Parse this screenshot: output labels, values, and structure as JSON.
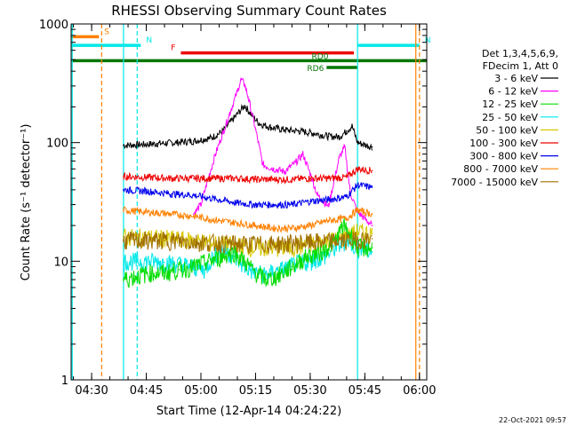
{
  "chart_data": {
    "type": "line",
    "title": "RHESSI Observing Summary Count Rates",
    "xlabel": "Start Time (12-Apr-14 04:24:22)",
    "ylabel": "Count Rate (s⁻¹ detector⁻¹)",
    "y_scale": "log",
    "ylim": [
      1,
      1000
    ],
    "xlim": [
      "04:24:22",
      "06:02:00"
    ],
    "x_ticks": [
      "04:30",
      "04:45",
      "05:00",
      "05:15",
      "05:30",
      "05:45",
      "06:00"
    ],
    "y_ticks": [
      "1",
      "10",
      "100",
      "1000"
    ],
    "footer_date": "22-Oct-2021 09:57",
    "legend": {
      "placement": "right",
      "header": [
        "Det 1,3,4,5,6,9,",
        "FDecim 1, Att 0"
      ],
      "entries": [
        {
          "label": "3 - 6 keV",
          "color": "#000000"
        },
        {
          "label": "6 - 12 keV",
          "color": "#ff00ff"
        },
        {
          "label": "12 - 25 keV",
          "color": "#00dd00"
        },
        {
          "label": "25 - 50 keV",
          "color": "#00e8e8"
        },
        {
          "label": "50 - 100 keV",
          "color": "#d8c800"
        },
        {
          "label": "100 - 300 keV",
          "color": "#ee0000"
        },
        {
          "label": "300 - 800 keV",
          "color": "#0000ee"
        },
        {
          "label": "800 - 7000 keV",
          "color": "#ff8000"
        },
        {
          "label": "7000 - 15000 keV",
          "color": "#a07000"
        }
      ]
    },
    "flags": [
      {
        "label": "S",
        "color": "#ff8000",
        "start": "04:24:22",
        "end": "04:32:00",
        "level": 780
      },
      {
        "label": "N",
        "color": "#00e8e8",
        "start": "04:24:22",
        "end": "04:43:30",
        "level": 660
      },
      {
        "label": "N",
        "color": "#00e8e8",
        "start": "05:43:00",
        "end": "06:00:00",
        "level": 660
      },
      {
        "label": "F",
        "color": "#ee0000",
        "start": "04:54:30",
        "end": "05:42:00",
        "level": 570
      },
      {
        "label": "RD0",
        "color": "#007700",
        "start": "04:24:22",
        "end": "06:02:00",
        "level": 490
      },
      {
        "label": "RD6",
        "color": "#007700",
        "start": "05:34:30",
        "end": "05:43:00",
        "level": 430
      }
    ],
    "vlines": [
      {
        "time": "04:24:40",
        "color": "#00e8e8",
        "style": "solid"
      },
      {
        "time": "04:32:45",
        "color": "#ff8000",
        "style": "dashed"
      },
      {
        "time": "04:42:30",
        "color": "#00e8e8",
        "style": "dashed"
      },
      {
        "time": "04:38:45",
        "color": "#00e8e8",
        "style": "solid"
      },
      {
        "time": "05:43:00",
        "color": "#00e8e8",
        "style": "solid"
      },
      {
        "time": "05:59:00",
        "color": "#ff8000",
        "style": "solid"
      },
      {
        "time": "06:00:00",
        "color": "#ff8000",
        "style": "dashed"
      }
    ],
    "series": [
      {
        "name": "3 - 6 keV",
        "color": "#000000",
        "x": [
          "04:38:45",
          "04:43:00",
          "04:48:00",
          "04:53:00",
          "04:58:00",
          "05:03:00",
          "05:06:00",
          "05:09:00",
          "05:12:00",
          "05:14:00",
          "05:16:00",
          "05:19:00",
          "05:23:00",
          "05:27:00",
          "05:31:00",
          "05:35:00",
          "05:38:00",
          "05:40:00",
          "05:41:30",
          "05:43:00",
          "05:47:00"
        ],
        "y": [
          95,
          96,
          98,
          100,
          103,
          110,
          125,
          160,
          205,
          170,
          145,
          135,
          128,
          125,
          120,
          113,
          112,
          125,
          138,
          100,
          92
        ]
      },
      {
        "name": "6 - 12 keV",
        "color": "#ff00ff",
        "x": [
          "04:58:00",
          "05:00:00",
          "05:02:00",
          "05:04:00",
          "05:06:00",
          "05:08:00",
          "05:10:00",
          "05:11:00",
          "05:12:00",
          "05:13:00",
          "05:15:00",
          "05:17:00",
          "05:20:00",
          "05:23:00",
          "05:26:00",
          "05:28:00",
          "05:30:00",
          "05:32:00",
          "05:35:00",
          "05:38:00",
          "05:39:30",
          "05:41:00",
          "05:43:00",
          "05:47:00"
        ],
        "y": [
          25,
          30,
          50,
          80,
          120,
          180,
          270,
          340,
          310,
          240,
          130,
          65,
          60,
          57,
          68,
          80,
          55,
          36,
          29,
          75,
          92,
          38,
          26,
          20
        ]
      },
      {
        "name": "100 - 300 keV",
        "color": "#ee0000",
        "x": [
          "04:38:45",
          "04:45:00",
          "04:52:00",
          "04:58:00",
          "05:05:00",
          "05:10:00",
          "05:15:00",
          "05:20:00",
          "05:25:00",
          "05:30:00",
          "05:35:00",
          "05:40:00",
          "05:43:00",
          "05:47:00"
        ],
        "y": [
          52,
          51,
          50,
          50,
          50,
          50,
          49,
          49,
          49,
          50,
          50,
          51,
          60,
          58
        ]
      },
      {
        "name": "300 - 800 keV",
        "color": "#0000ee",
        "x": [
          "04:38:45",
          "04:45:00",
          "04:52:00",
          "04:58:00",
          "05:05:00",
          "05:10:00",
          "05:15:00",
          "05:20:00",
          "05:25:00",
          "05:30:00",
          "05:35:00",
          "05:40:00",
          "05:43:00",
          "05:47:00"
        ],
        "y": [
          40,
          39,
          37,
          36,
          33,
          31,
          30,
          30,
          30,
          32,
          33,
          35,
          44,
          42
        ]
      },
      {
        "name": "800 - 7000 keV",
        "color": "#ff8000",
        "x": [
          "04:38:45",
          "04:45:00",
          "04:52:00",
          "04:58:00",
          "05:05:00",
          "05:10:00",
          "05:15:00",
          "05:20:00",
          "05:25:00",
          "05:30:00",
          "05:35:00",
          "05:40:00",
          "05:43:00",
          "05:47:00"
        ],
        "y": [
          27,
          26,
          25,
          24,
          22,
          21,
          20,
          19,
          19,
          20,
          22,
          23,
          27,
          25
        ]
      },
      {
        "name": "50 - 100 keV",
        "color": "#d8c800",
        "x": [
          "04:38:45",
          "04:45:00",
          "04:52:00",
          "04:58:00",
          "05:05:00",
          "05:10:00",
          "05:15:00",
          "05:20:00",
          "05:25:00",
          "05:30:00",
          "05:35:00",
          "05:40:00",
          "05:43:00",
          "05:47:00"
        ],
        "y": [
          16,
          16,
          15.5,
          15,
          14,
          13.5,
          13,
          13,
          13,
          14,
          15,
          16,
          18,
          17
        ]
      },
      {
        "name": "25 - 50 keV",
        "color": "#00e8e8",
        "x": [
          "04:38:45",
          "04:42:00",
          "04:46:00",
          "04:50:00",
          "04:54:00",
          "04:58:00",
          "05:01:00",
          "05:03:00",
          "05:06:00",
          "05:09:00",
          "05:12:00",
          "05:15:00",
          "05:18:00",
          "05:22:00",
          "05:26:00",
          "05:30:00",
          "05:34:00",
          "05:37:00",
          "05:40:00",
          "05:43:00",
          "05:47:00"
        ],
        "y": [
          10,
          10,
          10,
          9.8,
          9.5,
          9,
          8.5,
          10.5,
          12.5,
          11,
          9,
          8,
          7.8,
          8.5,
          9.5,
          10,
          11,
          13,
          15,
          13,
          12
        ]
      },
      {
        "name": "12 - 25 keV",
        "color": "#00dd00",
        "x": [
          "04:38:45",
          "04:42:00",
          "04:46:00",
          "04:50:00",
          "04:54:00",
          "04:58:00",
          "05:02:00",
          "05:06:00",
          "05:09:00",
          "05:12:00",
          "05:15:00",
          "05:18:00",
          "05:21:00",
          "05:25:00",
          "05:29:00",
          "05:33:00",
          "05:37:00",
          "05:39:00",
          "05:41:00",
          "05:43:00",
          "05:47:00"
        ],
        "y": [
          7,
          7.5,
          8,
          8,
          8.5,
          9,
          10,
          11,
          12,
          10,
          8,
          7,
          7.5,
          9,
          11,
          12,
          15,
          20,
          17,
          13,
          13
        ]
      },
      {
        "name": "7000 - 15000 keV",
        "color": "#a07000",
        "x": [
          "04:38:45",
          "04:50:00",
          "05:00:00",
          "05:10:00",
          "05:20:00",
          "05:30:00",
          "05:40:00",
          "05:47:00"
        ],
        "y": [
          15,
          15,
          14.5,
          14,
          14,
          14.5,
          15,
          15.5
        ]
      }
    ]
  }
}
